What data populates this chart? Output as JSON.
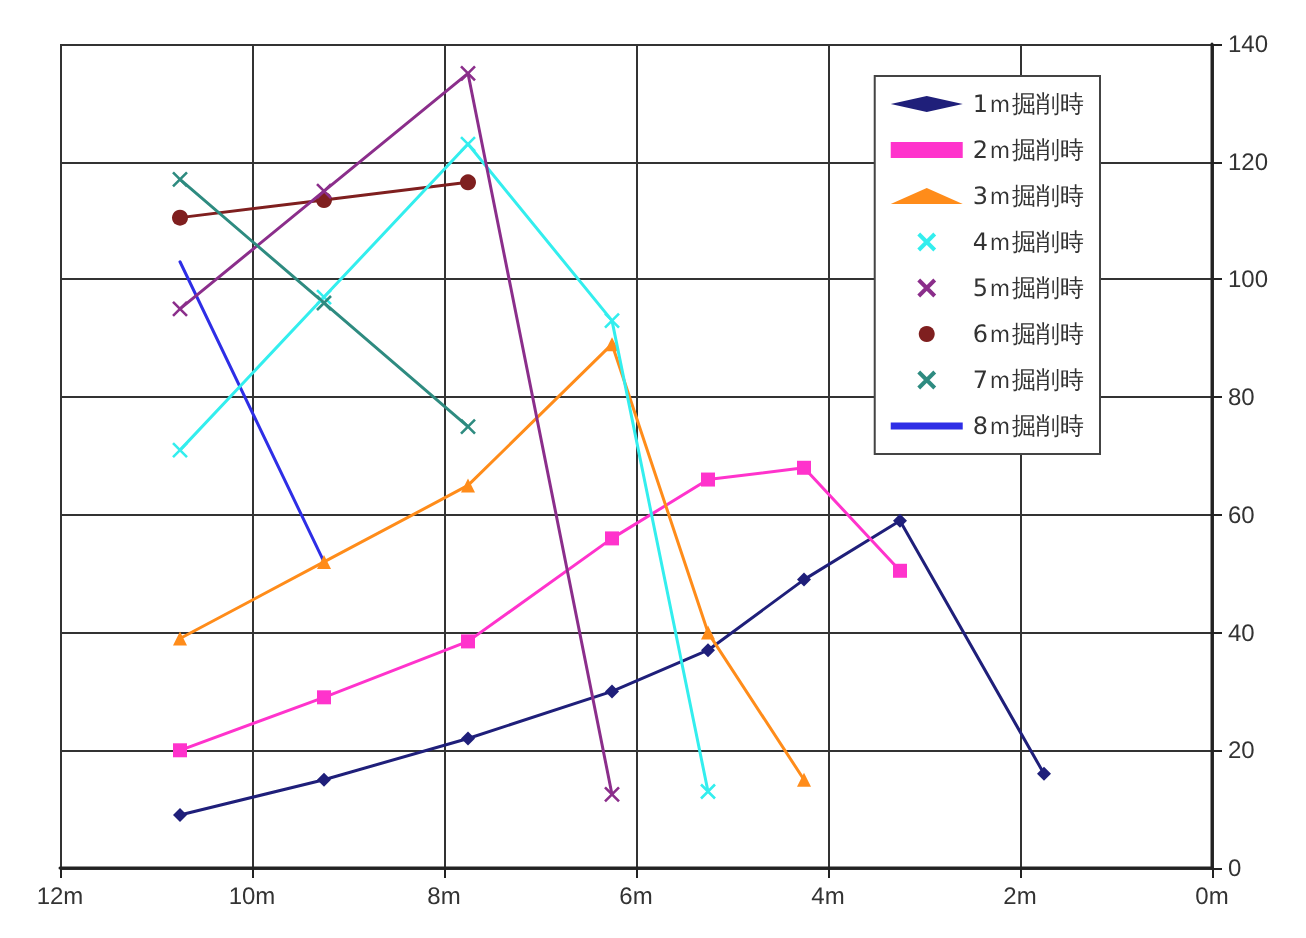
{
  "chart_data": {
    "type": "line",
    "x": [
      10.75,
      9.25,
      7.75,
      6.25,
      5.25,
      4.25,
      3.25,
      1.75
    ],
    "xlim": [
      12,
      0
    ],
    "xticks": [
      {
        "value": 12,
        "label": "12m"
      },
      {
        "value": 10,
        "label": "10m"
      },
      {
        "value": 8,
        "label": "8m"
      },
      {
        "value": 6,
        "label": "6m"
      },
      {
        "value": 4,
        "label": "4m"
      },
      {
        "value": 2,
        "label": "2m"
      },
      {
        "value": 0,
        "label": "0m"
      }
    ],
    "ylim": [
      0,
      140
    ],
    "yticks": [
      0,
      20,
      40,
      60,
      80,
      100,
      120,
      140
    ],
    "grid": true,
    "legend": "top right",
    "series": [
      {
        "name": "1ｍ掘削時",
        "color": "#1f1f7a",
        "marker": "diamond",
        "values": [
          9,
          15,
          22,
          30,
          37,
          49,
          59,
          16
        ]
      },
      {
        "name": "2ｍ掘削時",
        "color": "#ff33cc",
        "marker": "square",
        "values": [
          20,
          29,
          38.5,
          56,
          66,
          68,
          50.5,
          null
        ]
      },
      {
        "name": "3ｍ掘削時",
        "color": "#ff8c1a",
        "marker": "triangle",
        "values": [
          39,
          52,
          65,
          89,
          40,
          15,
          null,
          null
        ]
      },
      {
        "name": "4ｍ掘削時",
        "color": "#33eeee",
        "marker": "cross",
        "values": [
          71,
          97,
          123,
          93,
          13,
          null,
          null,
          null
        ]
      },
      {
        "name": "5ｍ掘削時",
        "color": "#8b2e8b",
        "marker": "cross",
        "values": [
          95,
          115,
          135,
          12.5,
          null,
          null,
          null,
          null
        ]
      },
      {
        "name": "6ｍ掘削時",
        "color": "#7f1f1f",
        "marker": "circle",
        "values": [
          110.5,
          113.5,
          116.5,
          null,
          null,
          null,
          null,
          null
        ]
      },
      {
        "name": "7ｍ掘削時",
        "color": "#2e8b80",
        "marker": "cross",
        "values": [
          117,
          96,
          75,
          null,
          null,
          null,
          null,
          null
        ]
      },
      {
        "name": "8ｍ掘削時",
        "color": "#2e2ee6",
        "marker": "none",
        "values": [
          103,
          52,
          null,
          null,
          null,
          null,
          null,
          null
        ]
      }
    ]
  }
}
